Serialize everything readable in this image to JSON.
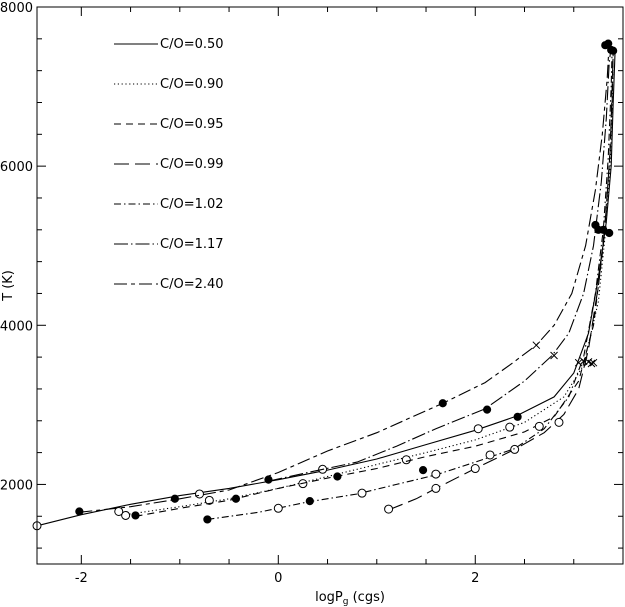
{
  "chart_data": {
    "type": "line",
    "title": "",
    "xlabel": "logP",
    "xlabel_subscript": "g",
    "xlabel_suffix": " (cgs)",
    "ylabel": "T (K)",
    "xlim": [
      -2.45,
      3.5
    ],
    "ylim": [
      1000,
      8000
    ],
    "xticks": [
      -2,
      0,
      2
    ],
    "yticks": [
      2000,
      4000,
      6000,
      8000
    ],
    "grid": false,
    "legend_position": "top-left",
    "series": [
      {
        "name": "C/O=0.50",
        "dash": "solid",
        "points": [
          [
            -2.45,
            1480
          ],
          [
            -2.0,
            1620
          ],
          [
            -1.5,
            1750
          ],
          [
            -1.0,
            1860
          ],
          [
            -0.5,
            1950
          ],
          [
            0.0,
            2060
          ],
          [
            0.5,
            2180
          ],
          [
            1.0,
            2320
          ],
          [
            1.5,
            2500
          ],
          [
            2.0,
            2680
          ],
          [
            2.4,
            2850
          ],
          [
            2.8,
            3100
          ],
          [
            3.0,
            3400
          ],
          [
            3.15,
            3900
          ],
          [
            3.25,
            4600
          ],
          [
            3.33,
            5300
          ],
          [
            3.38,
            6000
          ],
          [
            3.4,
            6800
          ],
          [
            3.42,
            7450
          ]
        ],
        "open_markers": [
          [
            -2.45,
            1480
          ],
          [
            -0.8,
            1880
          ],
          [
            0.45,
            2190
          ],
          [
            2.03,
            2700
          ]
        ],
        "filled_markers": [
          [
            -2.02,
            1660
          ],
          [
            -1.05,
            1820
          ],
          [
            -0.1,
            2060
          ],
          [
            2.43,
            2850
          ],
          [
            3.4,
            7450
          ]
        ],
        "cross_markers": [
          [
            3.2,
            3530
          ]
        ]
      },
      {
        "name": "C/O=0.90",
        "dash": "dotted",
        "points": [
          [
            -1.55,
            1620
          ],
          [
            -1.0,
            1720
          ],
          [
            -0.5,
            1820
          ],
          [
            0.0,
            1950
          ],
          [
            0.5,
            2100
          ],
          [
            1.0,
            2250
          ],
          [
            1.5,
            2400
          ],
          [
            2.0,
            2560
          ],
          [
            2.5,
            2780
          ],
          [
            2.9,
            3100
          ],
          [
            3.1,
            3500
          ],
          [
            3.25,
            4300
          ],
          [
            3.32,
            5150
          ],
          [
            3.37,
            6000
          ],
          [
            3.39,
            6800
          ],
          [
            3.4,
            7450
          ]
        ],
        "open_markers": [
          [
            -1.55,
            1610
          ],
          [
            -0.7,
            1800
          ],
          [
            0.25,
            2010
          ],
          [
            1.3,
            2310
          ],
          [
            2.35,
            2720
          ]
        ],
        "filled_markers": [
          [
            3.38,
            7460
          ]
        ],
        "cross_markers": [
          [
            3.15,
            3540
          ]
        ]
      },
      {
        "name": "C/O=0.95",
        "dash": "short-dash",
        "points": [
          [
            -1.45,
            1600
          ],
          [
            -1.0,
            1700
          ],
          [
            -0.5,
            1800
          ],
          [
            0.0,
            1950
          ],
          [
            0.5,
            2080
          ],
          [
            1.0,
            2200
          ],
          [
            1.5,
            2350
          ],
          [
            2.0,
            2480
          ],
          [
            2.5,
            2660
          ],
          [
            2.8,
            2850
          ],
          [
            3.05,
            3300
          ],
          [
            3.2,
            4000
          ],
          [
            3.3,
            5000
          ],
          [
            3.36,
            6000
          ],
          [
            3.39,
            6800
          ],
          [
            3.4,
            7500
          ]
        ],
        "open_markers": [
          [
            2.65,
            2730
          ]
        ],
        "filled_markers": [
          [
            -1.45,
            1610
          ],
          [
            -0.43,
            1820
          ],
          [
            0.6,
            2100
          ],
          [
            1.47,
            2180
          ],
          [
            3.36,
            5160
          ]
        ],
        "cross_markers": [
          [
            3.1,
            3550
          ]
        ]
      },
      {
        "name": "C/O=0.99",
        "dash": "long-dash",
        "points": [
          [
            1.12,
            1680
          ],
          [
            1.4,
            1820
          ],
          [
            1.6,
            1950
          ],
          [
            2.0,
            2200
          ],
          [
            2.4,
            2440
          ],
          [
            2.7,
            2650
          ],
          [
            2.9,
            2880
          ],
          [
            3.05,
            3200
          ],
          [
            3.15,
            3700
          ],
          [
            3.25,
            4500
          ],
          [
            3.32,
            5300
          ],
          [
            3.37,
            6200
          ],
          [
            3.39,
            7000
          ],
          [
            3.4,
            7450
          ]
        ],
        "open_markers": [
          [
            1.12,
            1690
          ],
          [
            1.6,
            1950
          ],
          [
            2.0,
            2200
          ],
          [
            2.4,
            2440
          ],
          [
            2.85,
            2780
          ]
        ],
        "filled_markers": [
          [
            3.3,
            5200
          ]
        ],
        "cross_markers": [
          [
            3.18,
            3520
          ]
        ]
      },
      {
        "name": "C/O=1.02",
        "dash": "dash-dot",
        "points": [
          [
            -0.72,
            1560
          ],
          [
            -0.2,
            1650
          ],
          [
            0.3,
            1780
          ],
          [
            0.8,
            1880
          ],
          [
            1.2,
            2000
          ],
          [
            1.6,
            2120
          ],
          [
            2.0,
            2280
          ],
          [
            2.4,
            2450
          ],
          [
            2.7,
            2700
          ],
          [
            2.95,
            3100
          ],
          [
            3.1,
            3600
          ],
          [
            3.22,
            4400
          ],
          [
            3.3,
            5200
          ],
          [
            3.35,
            6100
          ],
          [
            3.38,
            7000
          ],
          [
            3.39,
            7500
          ]
        ],
        "open_markers": [
          [
            0.0,
            1700
          ],
          [
            0.85,
            1890
          ],
          [
            1.6,
            2130
          ],
          [
            2.15,
            2370
          ]
        ],
        "filled_markers": [
          [
            -0.72,
            1560
          ],
          [
            0.32,
            1790
          ],
          [
            3.25,
            5200
          ]
        ],
        "cross_markers": [
          [
            3.05,
            3530
          ]
        ]
      },
      {
        "name": "C/O=1.17",
        "dash": "long-dash-dot",
        "points": [
          [
            -0.1,
            2040
          ],
          [
            0.3,
            2150
          ],
          [
            0.8,
            2280
          ],
          [
            1.2,
            2480
          ],
          [
            1.6,
            2700
          ],
          [
            2.1,
            2950
          ],
          [
            2.5,
            3300
          ],
          [
            2.78,
            3620
          ],
          [
            2.95,
            3900
          ],
          [
            3.1,
            4400
          ],
          [
            3.2,
            5000
          ],
          [
            3.28,
            5800
          ],
          [
            3.33,
            6600
          ],
          [
            3.36,
            7300
          ],
          [
            3.38,
            7500
          ]
        ],
        "open_markers": [],
        "filled_markers": [
          [
            2.12,
            2940
          ],
          [
            3.22,
            5260
          ],
          [
            3.32,
            7520
          ]
        ],
        "cross_markers": [
          [
            2.8,
            3620
          ]
        ]
      },
      {
        "name": "C/O=2.40",
        "dash": "long-short-dash",
        "points": [
          [
            -2.02,
            1650
          ],
          [
            -1.5,
            1720
          ],
          [
            -1.0,
            1820
          ],
          [
            -0.5,
            1930
          ],
          [
            0.0,
            2150
          ],
          [
            0.5,
            2420
          ],
          [
            1.0,
            2650
          ],
          [
            1.67,
            3020
          ],
          [
            2.1,
            3280
          ],
          [
            2.35,
            3500
          ],
          [
            2.62,
            3750
          ],
          [
            2.8,
            4000
          ],
          [
            2.98,
            4400
          ],
          [
            3.12,
            5000
          ],
          [
            3.22,
            5700
          ],
          [
            3.29,
            6400
          ],
          [
            3.34,
            7100
          ],
          [
            3.36,
            7550
          ]
        ],
        "open_markers": [
          [
            -1.62,
            1660
          ]
        ],
        "filled_markers": [
          [
            1.67,
            3020
          ],
          [
            3.35,
            7540
          ]
        ],
        "cross_markers": [
          [
            2.62,
            3750
          ]
        ]
      }
    ]
  }
}
